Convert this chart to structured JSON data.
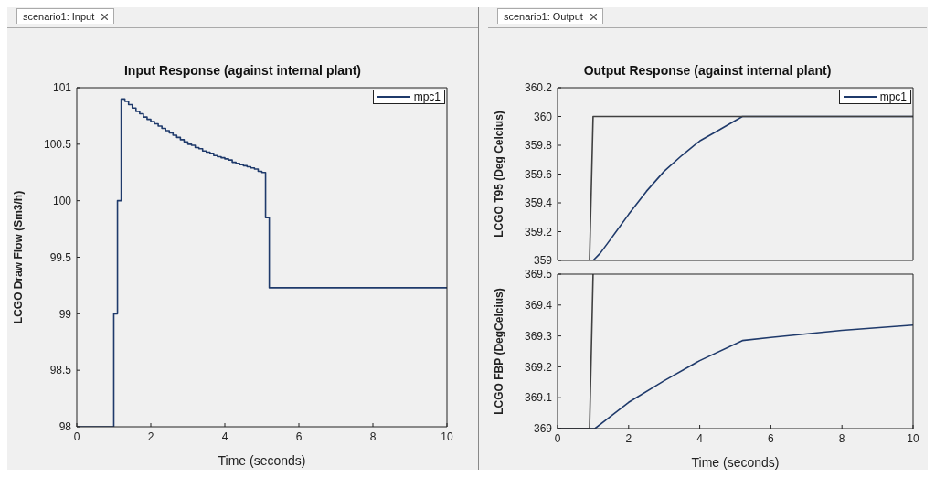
{
  "chart_data": [
    {
      "type": "step",
      "title": "Input Response (against internal plant)",
      "xlabel": "Time (seconds)",
      "ylabel": "LCGO Draw Flow (Sm3/h)",
      "annotations": [
        "scenario1: Input"
      ],
      "xlim": [
        0,
        10
      ],
      "xticks": [
        0,
        2,
        4,
        6,
        8,
        10
      ],
      "ylim": [
        98,
        101
      ],
      "yticks": [
        98,
        98.5,
        99,
        99.5,
        100,
        100.5,
        101
      ],
      "grid": false,
      "legend": "top right",
      "line_style": "solid",
      "marker": "none",
      "series": [
        {
          "name": "mpc1",
          "color": "#1f3a6b",
          "x": [
            0,
            1,
            1.1,
            1.2,
            1.3,
            1.4,
            1.5,
            1.6,
            1.7,
            1.8,
            1.9,
            2,
            2.1,
            2.2,
            2.3,
            2.4,
            2.5,
            2.6,
            2.7,
            2.8,
            2.9,
            3,
            3.1,
            3.2,
            3.3,
            3.4,
            3.5,
            3.6,
            3.7,
            3.8,
            3.9,
            4,
            4.1,
            4.2,
            4.3,
            4.4,
            4.5,
            4.6,
            4.7,
            4.8,
            4.9,
            5,
            5.1,
            5.2,
            10
          ],
          "values": [
            98,
            99,
            100,
            100.9,
            100.88,
            100.85,
            100.82,
            100.79,
            100.77,
            100.74,
            100.72,
            100.7,
            100.68,
            100.66,
            100.64,
            100.62,
            100.6,
            100.58,
            100.56,
            100.54,
            100.52,
            100.5,
            100.49,
            100.47,
            100.46,
            100.44,
            100.43,
            100.42,
            100.4,
            100.39,
            100.38,
            100.37,
            100.36,
            100.34,
            100.33,
            100.32,
            100.31,
            100.3,
            100.29,
            100.28,
            100.26,
            100.25,
            99.85,
            99.23,
            99.23
          ]
        }
      ]
    },
    {
      "type": "line",
      "title": "Output Response (against internal plant)",
      "ylabel": "LCGO T95 (Deg Celcius)",
      "annotations": [
        "scenario1: Output"
      ],
      "xlim": [
        0,
        10
      ],
      "xticks": [
        0,
        2,
        4,
        6,
        8,
        10
      ],
      "ylim": [
        359,
        360.2
      ],
      "yticks": [
        359,
        359.2,
        359.4,
        359.6,
        359.8,
        360,
        360.2
      ],
      "tick_labels": "y",
      "grid": false,
      "legend": "top right",
      "line_style": "solid",
      "marker": "none",
      "series": [
        {
          "name": "mpc1",
          "color": "#1f3a6b",
          "x": [
            0,
            1,
            1.2,
            1.5,
            2,
            2.5,
            3,
            3.5,
            4,
            4.5,
            5.2,
            10
          ],
          "values": [
            359,
            359,
            359.05,
            359.15,
            359.32,
            359.48,
            359.62,
            359.73,
            359.83,
            359.9,
            360,
            360
          ]
        },
        {
          "color": "#404040",
          "x": [
            0,
            0.9,
            1,
            10
          ],
          "values": [
            359,
            359,
            360,
            360
          ]
        }
      ]
    },
    {
      "type": "line",
      "xlabel": "Time (seconds)",
      "ylabel": "LCGO FBP (DegCelcius)",
      "xlim": [
        0,
        10
      ],
      "xticks": [
        0,
        2,
        4,
        6,
        8,
        10
      ],
      "ylim": [
        369,
        369.5
      ],
      "yticks": [
        369,
        369.1,
        369.2,
        369.3,
        369.4,
        369.5
      ],
      "grid": false,
      "line_style": "solid",
      "marker": "none",
      "series": [
        {
          "color": "#1f3a6b",
          "x": [
            0,
            1.05,
            1.5,
            2,
            3,
            4,
            5.2,
            6,
            8,
            10
          ],
          "values": [
            369,
            369,
            369.04,
            369.085,
            369.155,
            369.22,
            369.285,
            369.295,
            369.318,
            369.335
          ]
        },
        {
          "color": "#404040",
          "x": [
            0,
            0.9,
            1
          ],
          "values": [
            369,
            369,
            369.5
          ]
        }
      ]
    }
  ]
}
